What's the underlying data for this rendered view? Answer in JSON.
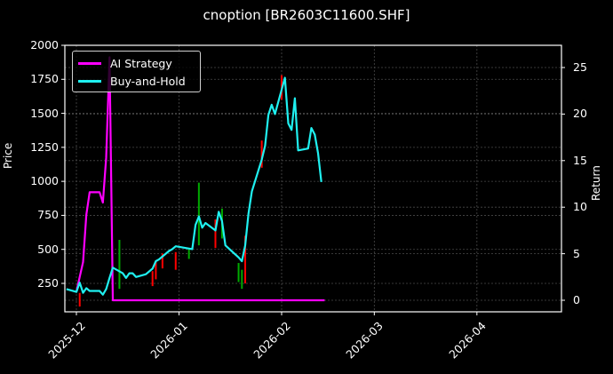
{
  "title": "cnoption [BR2603C11600.SHF]",
  "axes": {
    "left_label": "Price",
    "right_label": "Return",
    "left_ticks": [
      "2000",
      "1750",
      "1500",
      "1250",
      "1000",
      "750",
      "500",
      "250"
    ],
    "right_ticks": [
      "25",
      "20",
      "15",
      "10",
      "5",
      "0"
    ],
    "x_ticks": [
      "2025-12",
      "2026-01",
      "2026-02",
      "2026-03",
      "2026-04"
    ]
  },
  "legend": {
    "items": [
      {
        "label": "AI Strategy",
        "color": "#ff00ff"
      },
      {
        "label": "Buy-and-Hold",
        "color": "#00ffff"
      }
    ]
  },
  "colors": {
    "background": "#000000",
    "grid": "#555555",
    "axes": "#ffffff",
    "up_candle": "#00aa00",
    "down_candle": "#ff0000"
  },
  "chart_data": {
    "type": "line",
    "title": "cnoption [BR2603C11600.SHF]",
    "xlabel": "",
    "ylabel": "Price",
    "y2label": "Return",
    "ylim": [
      50,
      2000
    ],
    "y2lim": [
      -1.2,
      27.5
    ],
    "xlim": [
      "2025-11-28",
      "2026-05-07"
    ],
    "grid": true,
    "legend_position": "upper left",
    "x_tick_labels": [
      "2025-12",
      "2026-01",
      "2026-02",
      "2026-03",
      "2026-04"
    ],
    "y_tick_labels": [
      250,
      500,
      750,
      1000,
      1250,
      1500,
      1750,
      2000
    ],
    "y2_tick_labels": [
      0,
      5,
      10,
      15,
      20,
      25
    ],
    "series": [
      {
        "name": "AI Strategy",
        "axis": "right",
        "color": "#ff00ff",
        "x": [
          "2025-12-01",
          "2025-12-02",
          "2025-12-03",
          "2025-12-04",
          "2025-12-05",
          "2025-12-08",
          "2025-12-09",
          "2025-12-10",
          "2025-12-11",
          "2025-12-12",
          "2025-12-13",
          "2026-02-14"
        ],
        "values": [
          0.9,
          2.5,
          4.1,
          9.2,
          11.6,
          11.6,
          10.5,
          15.3,
          26.1,
          0.0,
          0.0,
          0.0
        ]
      },
      {
        "name": "Buy-and-Hold",
        "axis": "right",
        "color": "#00ffff",
        "x": [
          "2025-11-28",
          "2025-12-01",
          "2025-12-02",
          "2025-12-03",
          "2025-12-04",
          "2025-12-05",
          "2025-12-08",
          "2025-12-09",
          "2025-12-10",
          "2025-12-11",
          "2025-12-12",
          "2025-12-15",
          "2025-12-16",
          "2025-12-17",
          "2025-12-18",
          "2025-12-19",
          "2025-12-22",
          "2025-12-23",
          "2025-12-24",
          "2025-12-25",
          "2025-12-26",
          "2025-12-29",
          "2025-12-30",
          "2025-12-31",
          "2026-01-05",
          "2026-01-06",
          "2026-01-07",
          "2026-01-08",
          "2026-01-09",
          "2026-01-12",
          "2026-01-13",
          "2026-01-14",
          "2026-01-15",
          "2026-01-19",
          "2026-01-20",
          "2026-01-21",
          "2026-01-22",
          "2026-01-23",
          "2026-01-26",
          "2026-01-27",
          "2026-01-28",
          "2026-01-29",
          "2026-01-30",
          "2026-02-02",
          "2026-02-03",
          "2026-02-04",
          "2026-02-05",
          "2026-02-06",
          "2026-02-09",
          "2026-02-10",
          "2026-02-11",
          "2026-02-12",
          "2026-02-13"
        ],
        "values": [
          1.2,
          0.9,
          1.9,
          0.8,
          1.3,
          1.0,
          1.0,
          0.6,
          1.2,
          2.4,
          3.5,
          2.9,
          2.4,
          2.9,
          2.9,
          2.5,
          2.8,
          3.1,
          3.4,
          4.2,
          4.4,
          5.3,
          5.5,
          5.8,
          5.5,
          8.1,
          9.0,
          7.8,
          8.3,
          7.5,
          9.5,
          8.5,
          5.9,
          4.6,
          4.2,
          5.9,
          9.3,
          11.7,
          15.1,
          16.6,
          19.9,
          21.0,
          20.0,
          23.9,
          19.0,
          18.3,
          21.7,
          16.1,
          16.3,
          18.5,
          17.8,
          15.8,
          12.7
        ]
      }
    ],
    "candles": {
      "axis": "left",
      "note": "faint OHLC candlesticks (green up, red down) drawn behind lines on Price axis",
      "approx": [
        {
          "x": "2025-12-02",
          "low": 80,
          "high": 180,
          "dir": "down"
        },
        {
          "x": "2025-12-14",
          "low": 210,
          "high": 570,
          "dir": "up"
        },
        {
          "x": "2025-12-24",
          "low": 230,
          "high": 340,
          "dir": "down"
        },
        {
          "x": "2025-12-25",
          "low": 280,
          "high": 410,
          "dir": "down"
        },
        {
          "x": "2025-12-27",
          "low": 360,
          "high": 470,
          "dir": "down"
        },
        {
          "x": "2025-12-31",
          "low": 350,
          "high": 480,
          "dir": "down"
        },
        {
          "x": "2026-01-04",
          "low": 430,
          "high": 510,
          "dir": "up"
        },
        {
          "x": "2026-01-07",
          "low": 530,
          "high": 990,
          "dir": "up"
        },
        {
          "x": "2026-01-12",
          "low": 510,
          "high": 720,
          "dir": "down"
        },
        {
          "x": "2026-01-14",
          "low": 580,
          "high": 800,
          "dir": "up"
        },
        {
          "x": "2026-01-19",
          "low": 260,
          "high": 400,
          "dir": "up"
        },
        {
          "x": "2026-01-20",
          "low": 210,
          "high": 350,
          "dir": "up"
        },
        {
          "x": "2026-01-21",
          "low": 250,
          "high": 600,
          "dir": "down"
        },
        {
          "x": "2026-01-26",
          "low": 1100,
          "high": 1300,
          "dir": "down"
        },
        {
          "x": "2026-02-01",
          "low": 1600,
          "high": 1780,
          "dir": "down"
        }
      ]
    }
  }
}
